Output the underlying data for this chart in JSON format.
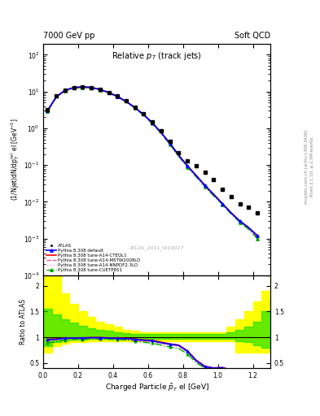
{
  "header_left": "7000 GeV pp",
  "header_right": "Soft QCD",
  "title_main": "Relative $p_T$ (track jets)",
  "xlabel": "Charged Particle $\\tilde{p}_T$ el [GeV]",
  "ylabel_main": "(1/Njet)dN/dp$^{\\rm rel}_T$ el [GeV$^{-1}$]",
  "ylabel_ratio": "Ratio to ATLAS",
  "watermark": "ATLAS_2011_I919017",
  "right_label1": "Rivet 3.1.10; ≥ 2.9M events",
  "right_label2": "mcplots.cern.ch [arXiv:1306.3436]",
  "xlim": [
    0,
    1.3
  ],
  "ylim_main": [
    0.0001,
    200
  ],
  "ylim_ratio": [
    0.4,
    2.2
  ],
  "yticks_ratio": [
    0.5,
    1.0,
    1.5,
    2.0
  ],
  "ytick_labels_ratio": [
    "0.5",
    "1",
    "1.5",
    "2"
  ],
  "atlas_x": [
    0.025,
    0.075,
    0.125,
    0.175,
    0.225,
    0.275,
    0.325,
    0.375,
    0.425,
    0.475,
    0.525,
    0.575,
    0.625,
    0.675,
    0.725,
    0.775,
    0.825,
    0.875,
    0.925,
    0.975,
    1.025,
    1.075,
    1.125,
    1.175,
    1.225
  ],
  "atlas_y": [
    3.2,
    7.5,
    11.0,
    13.0,
    13.5,
    13.0,
    11.5,
    9.5,
    7.5,
    5.5,
    3.8,
    2.5,
    1.5,
    0.85,
    0.45,
    0.22,
    0.13,
    0.095,
    0.065,
    0.04,
    0.022,
    0.014,
    0.009,
    0.007,
    0.005
  ],
  "theory_x": [
    0.025,
    0.075,
    0.125,
    0.175,
    0.225,
    0.275,
    0.325,
    0.375,
    0.425,
    0.475,
    0.525,
    0.575,
    0.625,
    0.675,
    0.725,
    0.775,
    0.825,
    0.875,
    0.925,
    0.975,
    1.025,
    1.075,
    1.125,
    1.175,
    1.225
  ],
  "default_y": [
    3.05,
    7.2,
    10.8,
    12.8,
    13.3,
    12.9,
    11.4,
    9.35,
    7.35,
    5.35,
    3.65,
    2.35,
    1.4,
    0.76,
    0.39,
    0.185,
    0.095,
    0.052,
    0.028,
    0.016,
    0.009,
    0.005,
    0.003,
    0.002,
    0.0012
  ],
  "cteql1_y": [
    3.08,
    7.25,
    10.85,
    12.85,
    13.35,
    12.95,
    11.45,
    9.4,
    7.4,
    5.38,
    3.68,
    2.37,
    1.41,
    0.77,
    0.392,
    0.187,
    0.096,
    0.053,
    0.0285,
    0.0162,
    0.0091,
    0.0051,
    0.00305,
    0.00202,
    0.00122
  ],
  "mstw_y": [
    3.0,
    7.1,
    10.7,
    12.7,
    13.2,
    12.8,
    11.3,
    9.3,
    7.3,
    5.3,
    3.6,
    2.3,
    1.38,
    0.75,
    0.385,
    0.183,
    0.093,
    0.051,
    0.027,
    0.015,
    0.0088,
    0.0049,
    0.0029,
    0.0019,
    0.0011
  ],
  "nnpdf_y": [
    3.0,
    7.1,
    10.7,
    12.7,
    13.2,
    12.8,
    11.3,
    9.3,
    7.3,
    5.3,
    3.6,
    2.3,
    1.38,
    0.75,
    0.385,
    0.183,
    0.093,
    0.051,
    0.027,
    0.015,
    0.0088,
    0.0049,
    0.0029,
    0.0019,
    0.0011
  ],
  "cuetp8s1_y": [
    2.85,
    6.85,
    10.4,
    12.4,
    12.95,
    12.6,
    11.15,
    9.1,
    7.15,
    5.2,
    3.52,
    2.25,
    1.33,
    0.72,
    0.365,
    0.172,
    0.088,
    0.048,
    0.026,
    0.0145,
    0.0085,
    0.0047,
    0.0028,
    0.0018,
    0.001
  ],
  "ratio_x": [
    0.025,
    0.075,
    0.125,
    0.175,
    0.225,
    0.275,
    0.325,
    0.375,
    0.425,
    0.475,
    0.525,
    0.575,
    0.625,
    0.675,
    0.725,
    0.775,
    0.825,
    0.875,
    0.925,
    0.975,
    1.025,
    1.075,
    1.125,
    1.175,
    1.225
  ],
  "ratio_default": [
    0.953,
    0.96,
    0.982,
    0.985,
    0.985,
    0.992,
    0.991,
    0.984,
    0.98,
    0.973,
    0.961,
    0.94,
    0.933,
    0.894,
    0.867,
    0.841,
    0.731,
    0.547,
    0.431,
    0.4,
    0.409,
    0.357,
    0.333,
    0.286,
    0.24
  ],
  "ratio_cteql1": [
    0.963,
    0.967,
    0.986,
    0.988,
    0.989,
    0.996,
    0.996,
    0.989,
    0.987,
    0.978,
    0.968,
    0.948,
    0.94,
    0.906,
    0.871,
    0.85,
    0.738,
    0.558,
    0.438,
    0.405,
    0.414,
    0.364,
    0.339,
    0.289,
    0.244
  ],
  "ratio_mstw": [
    0.938,
    0.947,
    0.973,
    0.977,
    0.978,
    0.985,
    0.983,
    0.979,
    0.973,
    0.964,
    0.947,
    0.92,
    0.92,
    0.882,
    0.856,
    0.832,
    0.715,
    0.537,
    0.415,
    0.375,
    0.4,
    0.35,
    0.322,
    0.271,
    0.22
  ],
  "ratio_nnpdf": [
    0.938,
    0.947,
    0.973,
    0.977,
    0.978,
    0.985,
    0.983,
    0.979,
    0.973,
    0.964,
    0.947,
    0.92,
    0.92,
    0.882,
    0.856,
    0.832,
    0.715,
    0.537,
    0.415,
    0.375,
    0.4,
    0.35,
    0.322,
    0.271,
    0.22
  ],
  "ratio_cuetp8s1": [
    0.891,
    0.913,
    0.945,
    0.954,
    0.959,
    0.969,
    0.97,
    0.958,
    0.953,
    0.945,
    0.926,
    0.9,
    0.887,
    0.847,
    0.811,
    0.782,
    0.677,
    0.505,
    0.4,
    0.363,
    0.386,
    0.336,
    0.311,
    0.257,
    0.2
  ],
  "yellow_band_edges": [
    0.0,
    0.05,
    0.1,
    0.15,
    0.2,
    0.25,
    0.3,
    0.35,
    0.4,
    0.45,
    0.5,
    0.55,
    0.6,
    0.65,
    0.7,
    0.75,
    0.8,
    0.85,
    0.9,
    0.95,
    1.0,
    1.05,
    1.1,
    1.15,
    1.2,
    1.25,
    1.3
  ],
  "yellow_lo": [
    0.7,
    0.82,
    0.88,
    0.9,
    0.91,
    0.92,
    0.92,
    0.93,
    0.93,
    0.93,
    0.93,
    0.93,
    0.93,
    0.93,
    0.93,
    0.93,
    0.93,
    0.93,
    0.93,
    0.93,
    0.93,
    0.93,
    0.7,
    0.7,
    0.7,
    0.7,
    0.7
  ],
  "yellow_hi": [
    2.2,
    2.2,
    1.85,
    1.65,
    1.5,
    1.4,
    1.3,
    1.25,
    1.2,
    1.15,
    1.12,
    1.1,
    1.1,
    1.1,
    1.1,
    1.1,
    1.1,
    1.1,
    1.1,
    1.1,
    1.1,
    1.2,
    1.35,
    1.5,
    1.7,
    1.9,
    2.2
  ],
  "green_band_edges": [
    0.0,
    0.05,
    0.1,
    0.15,
    0.2,
    0.25,
    0.3,
    0.35,
    0.4,
    0.45,
    0.5,
    0.55,
    0.6,
    0.65,
    0.7,
    0.75,
    0.8,
    0.85,
    0.9,
    0.95,
    1.0,
    1.05,
    1.1,
    1.15,
    1.2,
    1.25,
    1.3
  ],
  "green_lo": [
    0.82,
    0.9,
    0.94,
    0.95,
    0.96,
    0.965,
    0.965,
    0.97,
    0.97,
    0.97,
    0.97,
    0.97,
    0.97,
    0.97,
    0.97,
    0.97,
    0.97,
    0.97,
    0.97,
    0.97,
    0.97,
    0.97,
    0.93,
    0.9,
    0.85,
    0.8,
    0.7
  ],
  "green_hi": [
    1.55,
    1.45,
    1.35,
    1.28,
    1.22,
    1.18,
    1.14,
    1.12,
    1.1,
    1.08,
    1.07,
    1.06,
    1.06,
    1.06,
    1.06,
    1.06,
    1.06,
    1.06,
    1.06,
    1.06,
    1.06,
    1.1,
    1.15,
    1.2,
    1.3,
    1.5,
    1.75
  ],
  "color_default": "#0000ff",
  "color_cteql1": "#ff0000",
  "color_mstw": "#ff44aa",
  "color_nnpdf": "#ffaacc",
  "color_cuetp8s1": "#00aa00",
  "color_atlas": "#000000",
  "color_yellow": "#ffff00",
  "color_green": "#00dd00",
  "legend_labels": [
    "ATLAS",
    "Pythia 8.308 default",
    "Pythia 8.308 tune-A14-CTEQL1",
    "Pythia 8.308 tune-A14-MSTW2008LO",
    "Pythia 8.308 tune-A14-NNPDF2.3LO",
    "Pythia 8.308 tune-CUETP8S1"
  ]
}
